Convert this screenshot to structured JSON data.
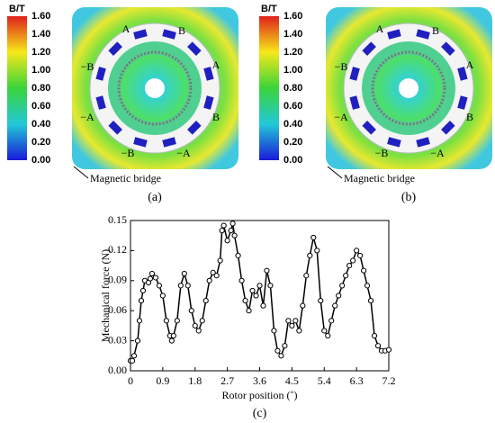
{
  "panels": [
    {
      "label": "(a)",
      "colorbar_title": "B/T",
      "annotation": "Magnetic bridge",
      "colorbar_ticks": [
        {
          "value": 1.6,
          "label": "1.60"
        },
        {
          "value": 1.4,
          "label": "1.40"
        },
        {
          "value": 1.2,
          "label": "1.20"
        },
        {
          "value": 1.0,
          "label": "1.00"
        },
        {
          "value": 0.8,
          "label": "0.80"
        },
        {
          "value": 0.6,
          "label": "0.60"
        },
        {
          "value": 0.4,
          "label": "0.40"
        },
        {
          "value": 0.2,
          "label": "0.20"
        },
        {
          "value": 0,
          "label": "0.00"
        }
      ],
      "phase_labels": [
        "A",
        "B",
        "−B",
        "A",
        "−A",
        "B",
        "−B",
        "−A"
      ]
    },
    {
      "label": "(b)",
      "colorbar_title": "B/T",
      "annotation": "Magnetic bridge",
      "colorbar_ticks": [
        {
          "value": 1.6,
          "label": "1.60"
        },
        {
          "value": 1.4,
          "label": "1.40"
        },
        {
          "value": 1.2,
          "label": "1.20"
        },
        {
          "value": 1.0,
          "label": "1.00"
        },
        {
          "value": 0.8,
          "label": "0.80"
        },
        {
          "value": 0.6,
          "label": "0.60"
        },
        {
          "value": 0.4,
          "label": "0.40"
        },
        {
          "value": 0.2,
          "label": "0.20"
        },
        {
          "value": 0,
          "label": "0.00"
        }
      ],
      "phase_labels": [
        "A",
        "B",
        "−B",
        "A",
        "−A",
        "B",
        "−B",
        "−A"
      ]
    }
  ],
  "chart_data": {
    "type": "line",
    "caption": "(c)",
    "x_label": "Rotor position (˚)",
    "y_label": "Mechanical force (N)",
    "x": [
      0,
      0.05,
      0.1,
      0.2,
      0.25,
      0.3,
      0.35,
      0.4,
      0.5,
      0.55,
      0.6,
      0.7,
      0.8,
      0.9,
      1.0,
      1.1,
      1.15,
      1.2,
      1.3,
      1.4,
      1.5,
      1.6,
      1.7,
      1.8,
      1.9,
      2.0,
      2.1,
      2.2,
      2.3,
      2.4,
      2.5,
      2.55,
      2.6,
      2.7,
      2.8,
      2.85,
      2.9,
      3.0,
      3.1,
      3.2,
      3.3,
      3.4,
      3.5,
      3.6,
      3.7,
      3.8,
      3.9,
      4.0,
      4.1,
      4.2,
      4.3,
      4.4,
      4.5,
      4.6,
      4.7,
      4.8,
      4.9,
      5.0,
      5.1,
      5.2,
      5.3,
      5.4,
      5.5,
      5.6,
      5.7,
      5.8,
      5.9,
      6.0,
      6.1,
      6.2,
      6.3,
      6.4,
      6.5,
      6.6,
      6.7,
      6.8,
      6.9,
      7.0,
      7.1,
      7.2
    ],
    "series": [
      {
        "name": "Mechanical force",
        "color": "#000000",
        "values": [
          0.01,
          0.01,
          0.015,
          0.03,
          0.05,
          0.07,
          0.08,
          0.09,
          0.088,
          0.092,
          0.097,
          0.093,
          0.085,
          0.075,
          0.05,
          0.035,
          0.03,
          0.035,
          0.05,
          0.085,
          0.097,
          0.085,
          0.06,
          0.045,
          0.04,
          0.05,
          0.07,
          0.09,
          0.098,
          0.095,
          0.11,
          0.14,
          0.145,
          0.13,
          0.14,
          0.147,
          0.135,
          0.115,
          0.09,
          0.07,
          0.06,
          0.08,
          0.075,
          0.085,
          0.065,
          0.1,
          0.085,
          0.04,
          0.02,
          0.015,
          0.025,
          0.05,
          0.045,
          0.05,
          0.04,
          0.065,
          0.095,
          0.115,
          0.133,
          0.12,
          0.07,
          0.04,
          0.035,
          0.05,
          0.065,
          0.075,
          0.085,
          0.095,
          0.105,
          0.11,
          0.12,
          0.115,
          0.1,
          0.085,
          0.07,
          0.035,
          0.025,
          0.02,
          0.02,
          0.021
        ]
      }
    ],
    "xlim": [
      0,
      7.2
    ],
    "xticks": [
      0,
      0.9,
      1.8,
      2.7,
      3.6,
      4.5,
      5.4,
      6.3,
      7.2
    ],
    "ylim": [
      0,
      0.15
    ],
    "yticks": [
      {
        "value": 0,
        "label": "0.00"
      },
      0.03,
      0.06,
      0.09,
      0.12,
      0.15
    ]
  }
}
